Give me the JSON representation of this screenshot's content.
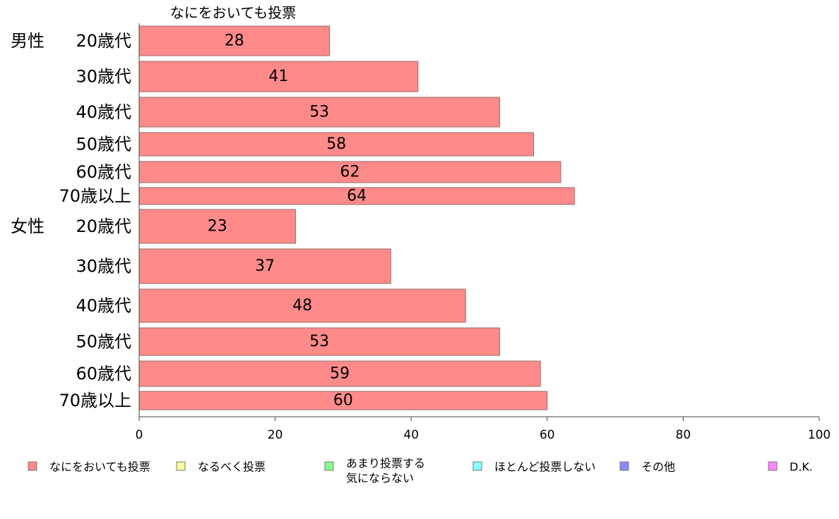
{
  "chart_data": {
    "type": "bar",
    "orientation": "horizontal",
    "series_title": "なにをおいても投票",
    "groups": [
      "男性",
      "女性"
    ],
    "categories": [
      "20歳代",
      "30歳代",
      "40歳代",
      "50歳代",
      "60歳代",
      "70歳以上",
      "20歳代",
      "30歳代",
      "40歳代",
      "50歳代",
      "60歳代",
      "70歳以上"
    ],
    "category_group": [
      0,
      0,
      0,
      0,
      0,
      0,
      1,
      1,
      1,
      1,
      1,
      1
    ],
    "series": [
      {
        "name": "なにをおいても投票",
        "color": "#ff8a8a",
        "values": [
          28,
          41,
          53,
          58,
          62,
          64,
          23,
          37,
          48,
          53,
          59,
          60
        ]
      }
    ],
    "xlim": [
      0,
      100
    ],
    "xticks": [
      0,
      20,
      40,
      60,
      80,
      100
    ],
    "grid": false,
    "legend": {
      "position": "bottom",
      "entries": [
        {
          "label": "なにをおいても投票",
          "color": "#ff8a8a"
        },
        {
          "label": "なるべく投票",
          "color": "#ffff99"
        },
        {
          "label": "あまり投票する",
          "label2": "気にならない",
          "color": "#8aff8a"
        },
        {
          "label": "ほとんど投票しない",
          "color": "#8affff"
        },
        {
          "label": "その他",
          "color": "#8a8aff"
        },
        {
          "label": "D.K.",
          "color": "#ff8aff"
        }
      ]
    }
  }
}
